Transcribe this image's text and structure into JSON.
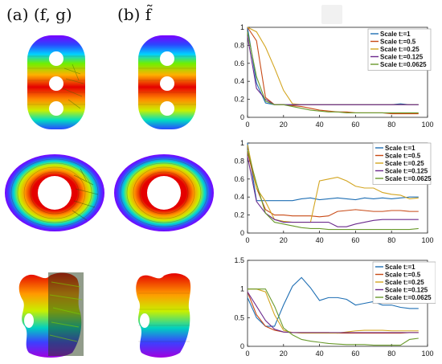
{
  "panels": {
    "a_label": "(a) (f, g)",
    "b_label": "(b) f̃"
  },
  "shape_colors": [
    "#7a00ff",
    "#2a48ff",
    "#00c8ff",
    "#00e27a",
    "#8cf000",
    "#f4e800",
    "#ff9a00",
    "#ff3a00",
    "#e40000"
  ],
  "chart_data": [
    {
      "type": "line",
      "x": [
        0,
        5,
        10,
        15,
        20,
        25,
        30,
        35,
        40,
        45,
        50,
        55,
        60,
        65,
        70,
        75,
        80,
        85,
        90,
        95
      ],
      "xlim": [
        0,
        100
      ],
      "ylim": [
        0,
        1
      ],
      "xticks": [
        "0",
        "20",
        "40",
        "60",
        "80",
        "100"
      ],
      "yticks": [
        "0",
        "0.2",
        "0.4",
        "0.6",
        "0.8",
        "1"
      ],
      "legend_position": "top-right",
      "series": [
        {
          "name": "Scale t:=1",
          "color": "#1f6fb4",
          "values": [
            1.0,
            0.38,
            0.16,
            0.14,
            0.14,
            0.14,
            0.14,
            0.14,
            0.14,
            0.14,
            0.14,
            0.14,
            0.14,
            0.14,
            0.14,
            0.14,
            0.14,
            0.15,
            0.14,
            0.14
          ]
        },
        {
          "name": "Scale t:=0.5",
          "color": "#c84a16",
          "values": [
            1.0,
            0.85,
            0.22,
            0.14,
            0.14,
            0.13,
            0.12,
            0.1,
            0.08,
            0.07,
            0.06,
            0.06,
            0.05,
            0.05,
            0.05,
            0.05,
            0.04,
            0.04,
            0.04,
            0.04
          ]
        },
        {
          "name": "Scale t:=0.25",
          "color": "#d3a520",
          "values": [
            1.0,
            0.95,
            0.78,
            0.55,
            0.3,
            0.15,
            0.14,
            0.14,
            0.14,
            0.14,
            0.14,
            0.14,
            0.14,
            0.14,
            0.14,
            0.14,
            0.14,
            0.14,
            0.14,
            0.14
          ]
        },
        {
          "name": "Scale t:=0.125",
          "color": "#6b2a8e",
          "values": [
            0.9,
            0.32,
            0.2,
            0.14,
            0.14,
            0.14,
            0.14,
            0.14,
            0.14,
            0.14,
            0.14,
            0.14,
            0.14,
            0.14,
            0.14,
            0.14,
            0.14,
            0.14,
            0.14,
            0.14
          ]
        },
        {
          "name": "Scale t:=0.0625",
          "color": "#6a9a2c",
          "values": [
            0.95,
            0.45,
            0.18,
            0.14,
            0.14,
            0.12,
            0.1,
            0.08,
            0.07,
            0.06,
            0.06,
            0.05,
            0.05,
            0.05,
            0.05,
            0.05,
            0.05,
            0.05,
            0.05,
            0.05
          ]
        }
      ]
    },
    {
      "type": "line",
      "x": [
        0,
        5,
        10,
        15,
        20,
        25,
        30,
        35,
        40,
        45,
        50,
        55,
        60,
        65,
        70,
        75,
        80,
        85,
        90,
        95
      ],
      "xlim": [
        0,
        100
      ],
      "ylim": [
        0,
        1
      ],
      "xticks": [
        "0",
        "20",
        "40",
        "60",
        "80",
        "100"
      ],
      "yticks": [
        "0",
        "0.2",
        "0.4",
        "0.6",
        "0.8",
        "1"
      ],
      "legend_position": "top-right",
      "series": [
        {
          "name": "Scale t:=1",
          "color": "#1f6fb4",
          "values": [
            1.0,
            0.36,
            0.36,
            0.36,
            0.36,
            0.36,
            0.38,
            0.39,
            0.37,
            0.38,
            0.39,
            0.38,
            0.37,
            0.39,
            0.38,
            0.39,
            0.38,
            0.39,
            0.4,
            0.4
          ]
        },
        {
          "name": "Scale t:=0.5",
          "color": "#c84a16",
          "values": [
            0.9,
            0.5,
            0.26,
            0.2,
            0.2,
            0.19,
            0.19,
            0.19,
            0.18,
            0.19,
            0.24,
            0.25,
            0.26,
            0.25,
            0.24,
            0.24,
            0.25,
            0.25,
            0.24,
            0.24
          ]
        },
        {
          "name": "Scale t:=0.25",
          "color": "#d3a520",
          "values": [
            0.98,
            0.5,
            0.35,
            0.15,
            0.13,
            0.12,
            0.12,
            0.12,
            0.58,
            0.6,
            0.62,
            0.58,
            0.52,
            0.5,
            0.5,
            0.45,
            0.43,
            0.42,
            0.38,
            0.39
          ]
        },
        {
          "name": "Scale t:=0.125",
          "color": "#6b2a8e",
          "values": [
            0.85,
            0.35,
            0.22,
            0.15,
            0.12,
            0.12,
            0.12,
            0.12,
            0.12,
            0.12,
            0.07,
            0.07,
            0.1,
            0.12,
            0.14,
            0.15,
            0.15,
            0.15,
            0.15,
            0.15
          ]
        },
        {
          "name": "Scale t:=0.0625",
          "color": "#6a9a2c",
          "values": [
            0.92,
            0.55,
            0.22,
            0.12,
            0.1,
            0.08,
            0.06,
            0.05,
            0.05,
            0.04,
            0.04,
            0.04,
            0.04,
            0.04,
            0.04,
            0.04,
            0.04,
            0.04,
            0.04,
            0.05
          ]
        }
      ]
    },
    {
      "type": "line",
      "x": [
        0,
        5,
        10,
        15,
        20,
        25,
        30,
        35,
        40,
        45,
        50,
        55,
        60,
        65,
        70,
        75,
        80,
        85,
        90,
        95
      ],
      "xlim": [
        0,
        100
      ],
      "ylim": [
        0,
        1.5
      ],
      "xticks": [
        "0",
        "20",
        "40",
        "60",
        "80",
        "100"
      ],
      "yticks": [
        "0",
        "0.5",
        "1",
        "1.5"
      ],
      "legend_position": "top-right",
      "series": [
        {
          "name": "Scale t:=1",
          "color": "#1f6fb4",
          "values": [
            0.85,
            0.5,
            0.35,
            0.35,
            0.72,
            1.05,
            1.2,
            1.02,
            0.8,
            0.85,
            0.85,
            0.82,
            0.72,
            0.75,
            0.78,
            0.72,
            0.72,
            0.68,
            0.66,
            0.66
          ]
        },
        {
          "name": "Scale t:=0.5",
          "color": "#c84a16",
          "values": [
            0.95,
            0.55,
            0.35,
            0.28,
            0.25,
            0.24,
            0.24,
            0.24,
            0.24,
            0.24,
            0.23,
            0.23,
            0.23,
            0.23,
            0.23,
            0.23,
            0.23,
            0.23,
            0.24,
            0.24
          ]
        },
        {
          "name": "Scale t:=0.25",
          "color": "#d3a520",
          "values": [
            1.0,
            1.0,
            0.95,
            0.55,
            0.28,
            0.24,
            0.23,
            0.23,
            0.23,
            0.23,
            0.23,
            0.25,
            0.27,
            0.28,
            0.28,
            0.28,
            0.27,
            0.27,
            0.27,
            0.27
          ]
        },
        {
          "name": "Scale t:=0.125",
          "color": "#6b2a8e",
          "values": [
            0.95,
            0.7,
            0.45,
            0.3,
            0.25,
            0.24,
            0.24,
            0.24,
            0.24,
            0.24,
            0.24,
            0.24,
            0.24,
            0.24,
            0.24,
            0.24,
            0.24,
            0.24,
            0.24,
            0.24
          ]
        },
        {
          "name": "Scale t:=0.0625",
          "color": "#6a9a2c",
          "values": [
            1.0,
            1.0,
            1.0,
            0.7,
            0.32,
            0.2,
            0.12,
            0.09,
            0.07,
            0.05,
            0.04,
            0.03,
            0.03,
            0.03,
            0.02,
            0.02,
            0.02,
            0.02,
            0.12,
            0.14
          ]
        }
      ]
    }
  ]
}
